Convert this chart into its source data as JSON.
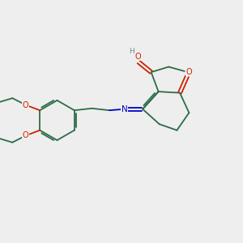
{
  "bg_color": "#eeeeee",
  "bond_color": "#2d6b4a",
  "atom_colors": {
    "O": "#cc2200",
    "N": "#0000cc",
    "H": "#778888",
    "C": "#2d6b4a"
  }
}
